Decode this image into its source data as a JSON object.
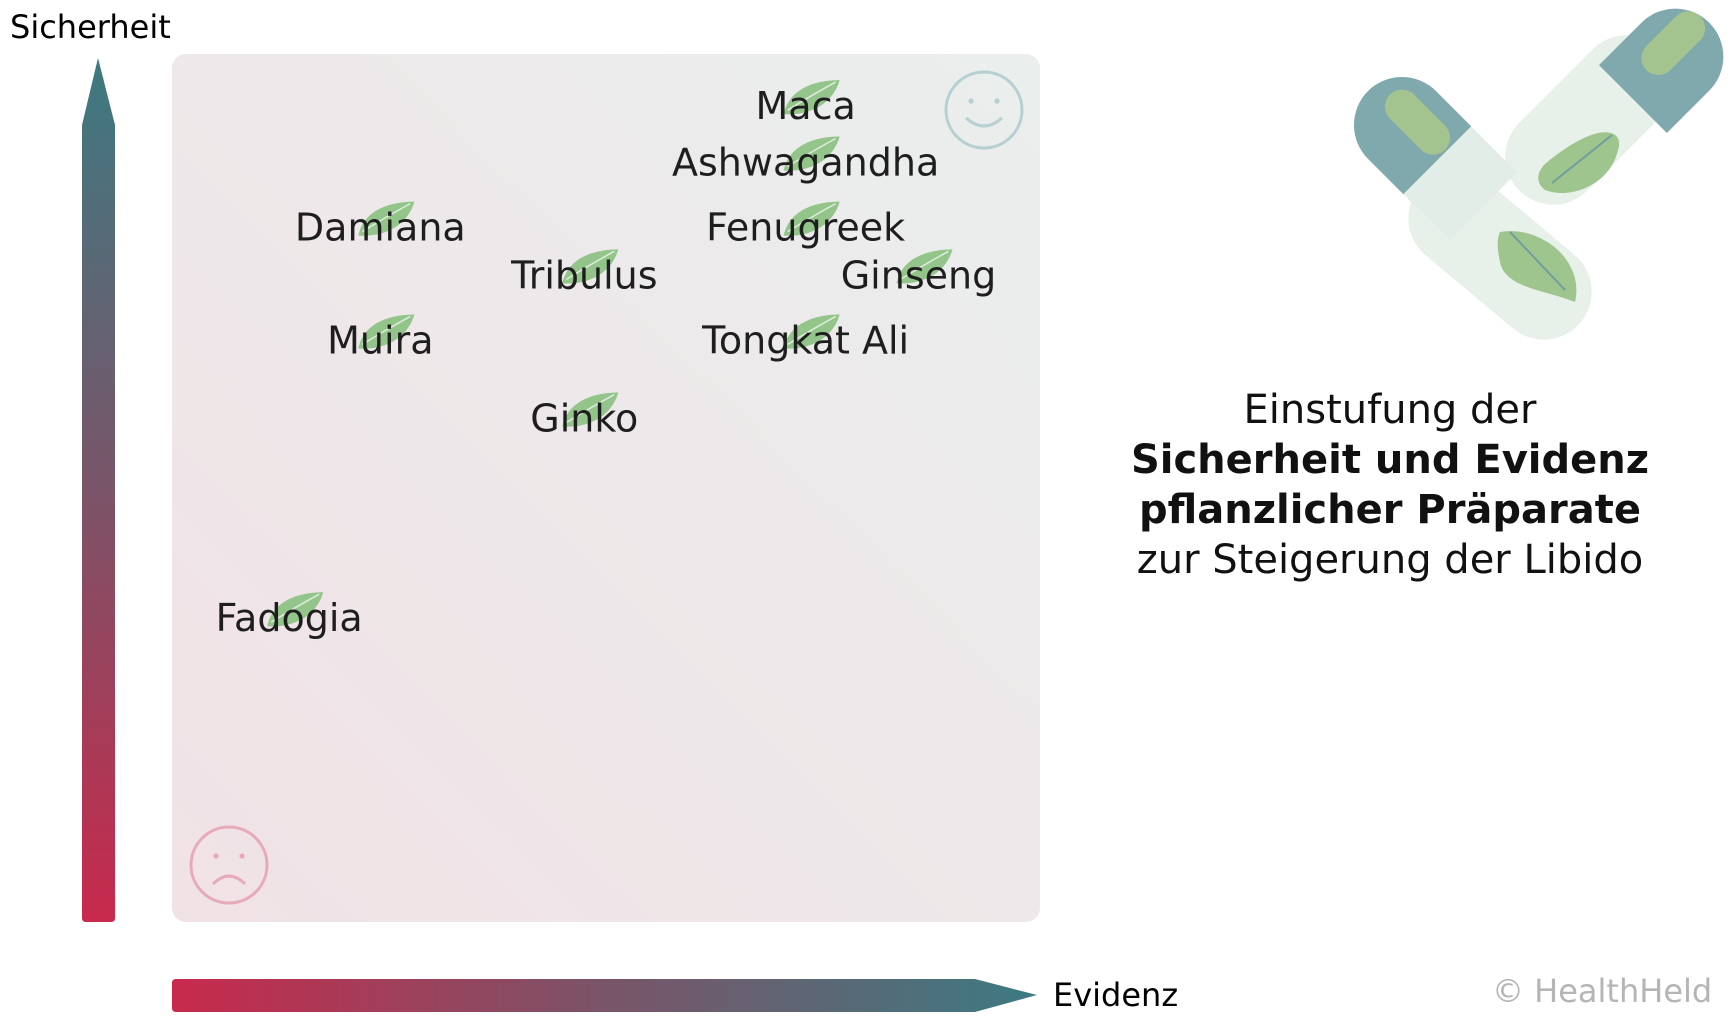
{
  "chart_data": {
    "type": "scatter",
    "ylabel": "Sicherheit",
    "xlabel": "Evidenz",
    "xlim": [
      0,
      100
    ],
    "ylim": [
      0,
      100
    ],
    "points": [
      {
        "label": "Maca",
        "x": 73,
        "y": 94
      },
      {
        "label": "Ashwagandha",
        "x": 73,
        "y": 87.5
      },
      {
        "label": "Damiana",
        "x": 24,
        "y": 80
      },
      {
        "label": "Fenugreek",
        "x": 73,
        "y": 80
      },
      {
        "label": "Tribulus",
        "x": 47.5,
        "y": 74.5
      },
      {
        "label": "Ginseng",
        "x": 86,
        "y": 74.5
      },
      {
        "label": "Muira",
        "x": 24,
        "y": 67
      },
      {
        "label": "Tongkat Ali",
        "x": 73,
        "y": 67
      },
      {
        "label": "Ginko",
        "x": 47.5,
        "y": 58
      },
      {
        "label": "Fadogia",
        "x": 13.5,
        "y": 35
      }
    ],
    "colors": {
      "low": "#c8294c",
      "high": "#3d7a82",
      "leaf": "#93c48a",
      "panel_top": "#ebeeec",
      "panel_bottom": "#f0e3e6"
    }
  },
  "title": {
    "line1": "Einstufung der",
    "line2": "Sicherheit und Evidenz",
    "line3": "pflanzlicher Präparate",
    "line4": "zur Steigerung der Libido"
  },
  "credit": "© HealthHeld",
  "icons": {
    "top_right": "smiley-icon",
    "bottom_left": "frowny-icon",
    "logo": "herbal-capsules-icon"
  }
}
